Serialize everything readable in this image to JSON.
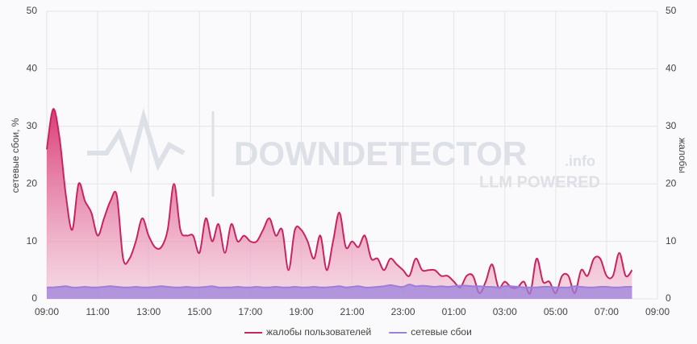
{
  "chart_data": {
    "type": "area",
    "watermark": {
      "brand": "DOWNDETECTOR",
      "suffix": ".info",
      "tagline": "LLM POWERED"
    },
    "ylabel": "сетевые сбои, %",
    "y2label": "жалобы",
    "xlim": [
      0,
      24
    ],
    "xticks": [
      {
        "value": 0,
        "label": "09:00"
      },
      {
        "value": 2,
        "label": "11:00"
      },
      {
        "value": 4,
        "label": "13:00"
      },
      {
        "value": 6,
        "label": "15:00"
      },
      {
        "value": 8,
        "label": "17:00"
      },
      {
        "value": 10,
        "label": "19:00"
      },
      {
        "value": 12,
        "label": "21:00"
      },
      {
        "value": 14,
        "label": "23:00"
      },
      {
        "value": 16,
        "label": "01:00"
      },
      {
        "value": 18,
        "label": "03:00"
      },
      {
        "value": 20,
        "label": "05:00"
      },
      {
        "value": 22,
        "label": "07:00"
      },
      {
        "value": 24,
        "label": "09:00"
      }
    ],
    "ylim": [
      0,
      50
    ],
    "yticks": [
      0,
      10,
      20,
      30,
      40,
      50
    ],
    "y2lim": [
      0,
      50
    ],
    "y2ticks": [
      0,
      10,
      20,
      30,
      40,
      50
    ],
    "grid": true,
    "x": [
      0,
      0.25,
      0.5,
      0.75,
      1,
      1.25,
      1.5,
      1.75,
      2,
      2.25,
      2.5,
      2.75,
      3,
      3.25,
      3.5,
      3.75,
      4,
      4.25,
      4.5,
      4.75,
      5,
      5.25,
      5.5,
      5.75,
      6,
      6.25,
      6.5,
      6.75,
      7,
      7.25,
      7.5,
      7.75,
      8,
      8.25,
      8.5,
      8.75,
      9,
      9.25,
      9.5,
      9.75,
      10,
      10.25,
      10.5,
      10.75,
      11,
      11.25,
      11.5,
      11.75,
      12,
      12.25,
      12.5,
      12.75,
      13,
      13.25,
      13.5,
      13.75,
      14,
      14.25,
      14.5,
      14.75,
      15,
      15.25,
      15.5,
      15.75,
      16,
      16.25,
      16.5,
      16.75,
      17,
      17.25,
      17.5,
      17.75,
      18,
      18.25,
      18.5,
      18.75,
      19,
      19.25,
      19.5,
      19.75,
      20,
      20.25,
      20.5,
      20.75,
      21,
      21.25,
      21.5,
      21.75,
      22,
      22.25,
      22.5,
      22.75,
      23
    ],
    "series": [
      {
        "name": "жалобы пользователей",
        "color": "#c9245f",
        "axis": "y2",
        "values": [
          26,
          33,
          28,
          18,
          12,
          20,
          17,
          15,
          11,
          14,
          17,
          18,
          7,
          7,
          10,
          14,
          11,
          9,
          9,
          12,
          20,
          12,
          11,
          11,
          8,
          14,
          10,
          13,
          8,
          13,
          10,
          11,
          10,
          10,
          12,
          14,
          11,
          12,
          5,
          12,
          12,
          10,
          7,
          11,
          5,
          10,
          15,
          9,
          10,
          9,
          11,
          7,
          7,
          5,
          7,
          6,
          5,
          4,
          7,
          5,
          5,
          5,
          4,
          4,
          3,
          2,
          4,
          4,
          1,
          3,
          6,
          2,
          3,
          2,
          2,
          3,
          1,
          7,
          3,
          3,
          1,
          4,
          4,
          1,
          5,
          4,
          7,
          7,
          4,
          4,
          8,
          4,
          5
        ]
      },
      {
        "name": "сетевые сбои",
        "color": "#9b7fd9",
        "values": [
          2,
          2,
          2.1,
          2.2,
          2,
          2,
          2.1,
          2,
          2,
          2.1,
          2.2,
          2.1,
          2,
          2,
          2.1,
          2,
          2,
          2.1,
          2.2,
          2.1,
          2,
          2,
          2.1,
          2,
          2,
          2.1,
          2.2,
          2,
          2,
          2,
          2.1,
          2,
          2,
          2.1,
          2,
          2,
          2.1,
          2,
          2,
          2.1,
          2,
          2,
          2.1,
          2,
          2,
          2.1,
          2.2,
          2,
          2.1,
          2.2,
          2,
          2,
          2.1,
          2.2,
          2.4,
          2.2,
          2.1,
          2.5,
          2.2,
          2.3,
          2.2,
          2.1,
          2.2,
          2.1,
          2.2,
          2.3,
          2.3,
          2.2,
          2.2,
          2.1,
          2.1,
          2,
          2.2,
          2.2,
          2.1,
          2,
          2,
          2,
          2.1,
          2.1,
          2,
          2,
          2,
          2.2,
          2.1,
          2,
          2,
          2.1,
          2.1,
          2,
          2,
          2.1,
          2.1
        ]
      }
    ]
  }
}
